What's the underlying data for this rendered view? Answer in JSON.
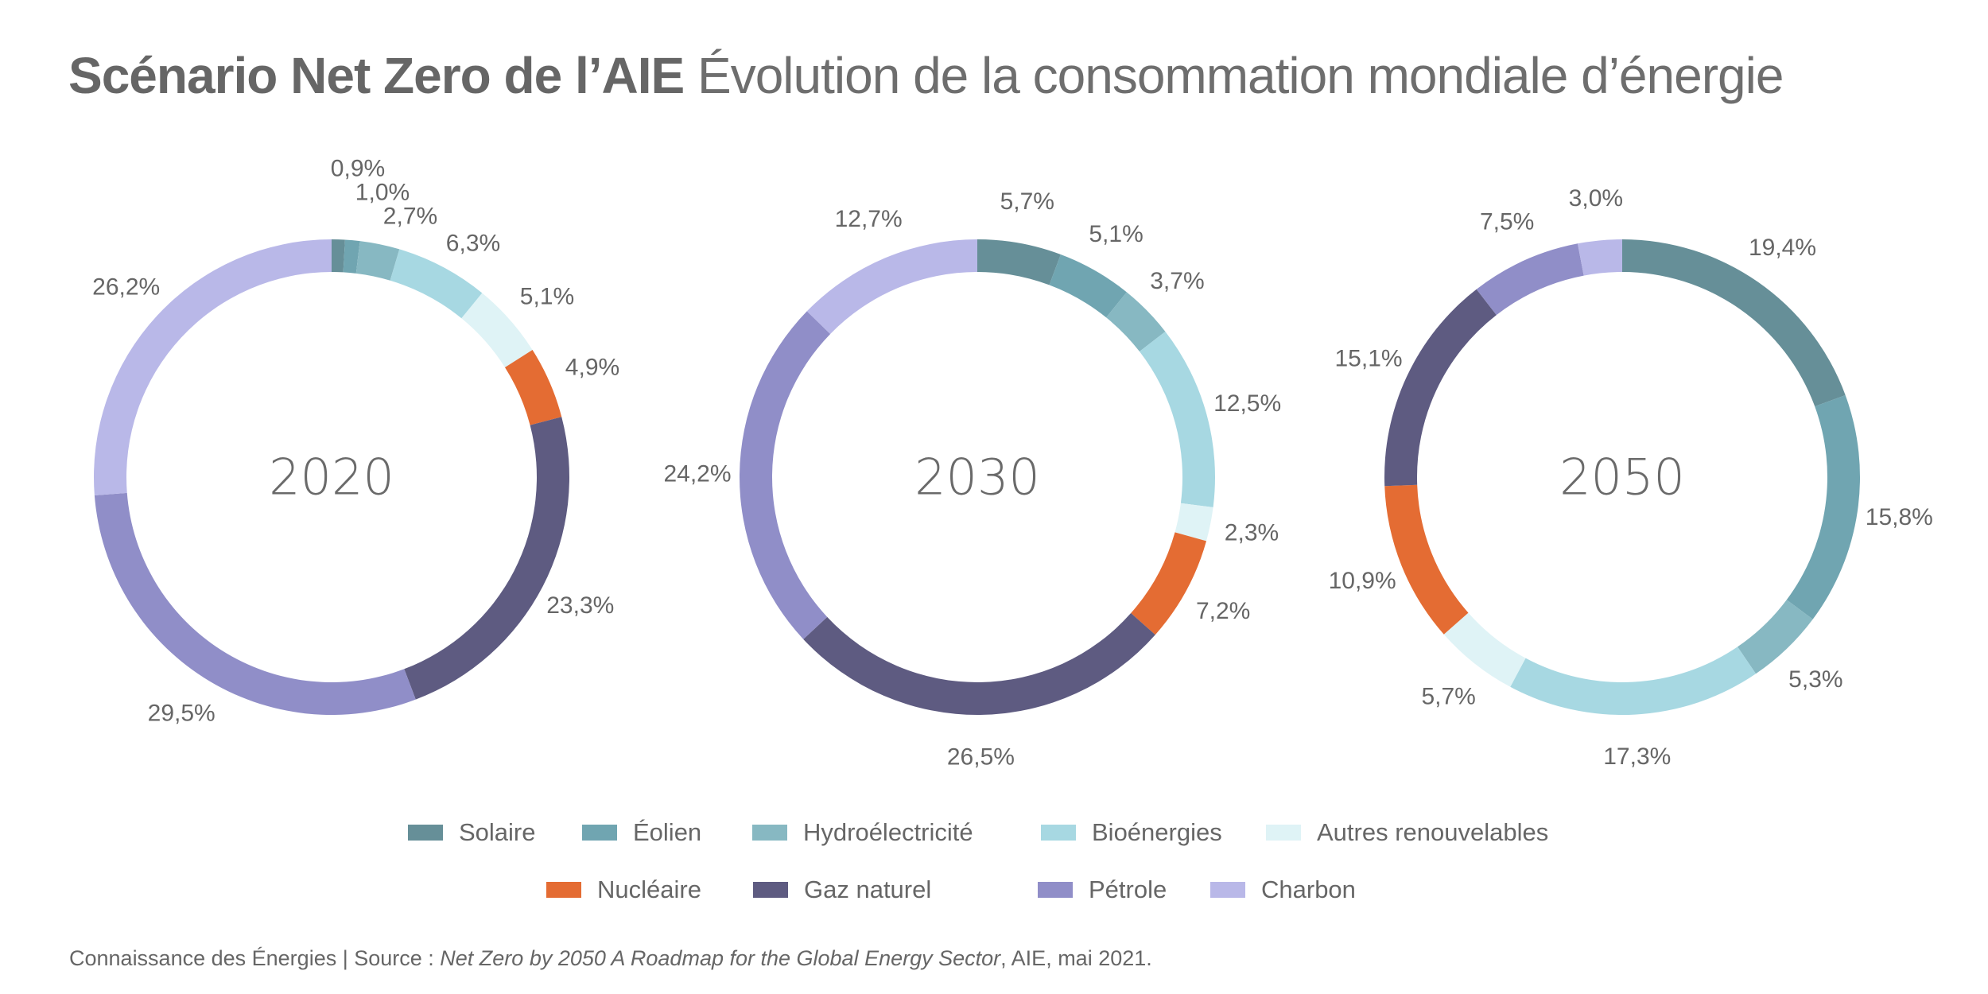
{
  "title": {
    "bold": "Scénario Net Zero de l’AIE",
    "light": "Évolution de la consommation mondiale d’énergie"
  },
  "footer": {
    "prefix": "Connaissance des Énergies | Source : ",
    "source_title": "Net Zero by 2050 A Roadmap for the Global Energy Sector",
    "suffix": ", AIE, mai 2021."
  },
  "colors": {
    "Solaire": "#668f98",
    "Éolien": "#70a5b1",
    "Hydroélectricité": "#87b8c2",
    "Bioénergies": "#a7d8e2",
    "Autres renouvelables": "#dff3f6",
    "Nucléaire": "#e46c33",
    "Gaz naturel": "#5e5b81",
    "Pétrole": "#908ec8",
    "Charbon": "#b9b8e8"
  },
  "legend": {
    "row1": [
      "Solaire",
      "Éolien",
      "Hydroélectricité",
      "Bioénergies",
      "Autres renouvelables"
    ],
    "row2": [
      "Nucléaire",
      "Gaz naturel",
      "Pétrole",
      "Charbon"
    ]
  },
  "chart_data": {
    "type": "pie",
    "subtype": "donut",
    "title": "Scénario Net Zero de l’AIE Évolution de la consommation mondiale d’énergie",
    "unit": "%",
    "categories": [
      "Solaire",
      "Éolien",
      "Hydroélectricité",
      "Bioénergies",
      "Autres renouvelables",
      "Nucléaire",
      "Gaz naturel",
      "Pétrole",
      "Charbon"
    ],
    "series": [
      {
        "name": "2020",
        "values": [
          0.9,
          1.0,
          2.7,
          6.3,
          5.1,
          4.9,
          23.3,
          29.5,
          26.2
        ],
        "labels": [
          "0,9%",
          "1,0%",
          "2,7%",
          "6,3%",
          "5,1%",
          "4,9%",
          "23,3%",
          "29,5%",
          "26,2%"
        ]
      },
      {
        "name": "2030",
        "values": [
          5.7,
          5.1,
          3.7,
          12.5,
          2.3,
          7.2,
          26.5,
          24.2,
          12.7
        ],
        "labels": [
          "5,7%",
          "5,1%",
          "3,7%",
          "12,5%",
          "2,3%",
          "7,2%",
          "26,5%",
          "24,2%",
          "12,7%"
        ]
      },
      {
        "name": "2050",
        "values": [
          19.4,
          15.8,
          5.3,
          17.3,
          5.7,
          10.9,
          15.1,
          7.5,
          3.0
        ],
        "labels": [
          "19,4%",
          "15,8%",
          "5,3%",
          "17,3%",
          "5,7%",
          "10,9%",
          "15,1%",
          "7,5%",
          "3,0%"
        ]
      }
    ],
    "legend_position": "bottom-center",
    "start_angle": "top, clockwise"
  }
}
